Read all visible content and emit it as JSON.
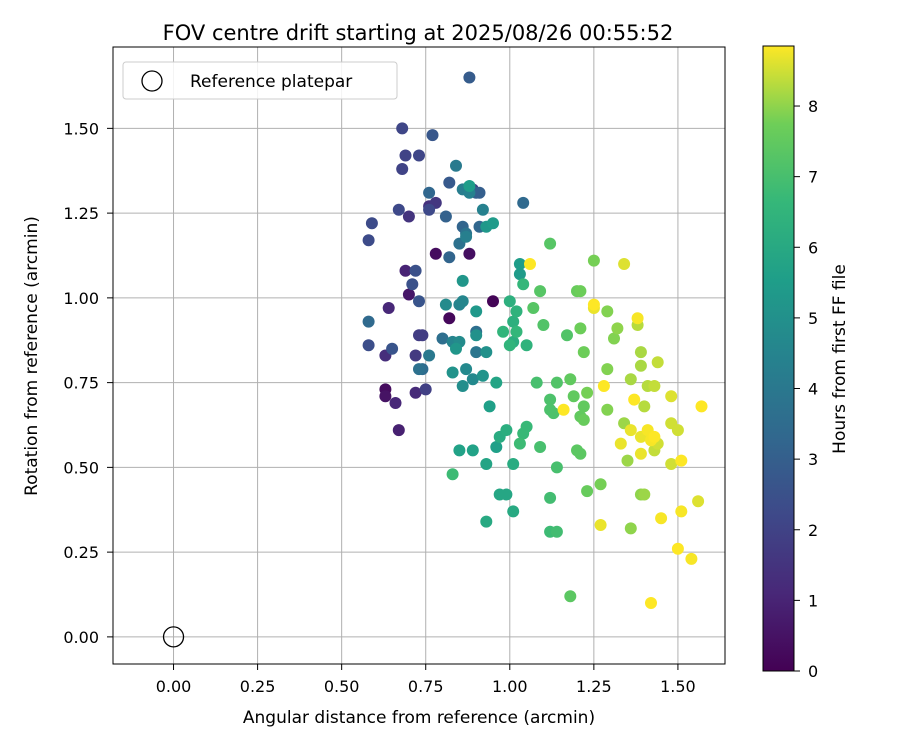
{
  "chart_data": {
    "type": "scatter",
    "title": "FOV centre drift starting at 2025/08/26 00:55:52",
    "xlabel": "Angular distance from reference (arcmin)",
    "ylabel": "Rotation from reference (arcmin)",
    "xlim": [
      -0.18,
      1.64
    ],
    "ylim": [
      -0.08,
      1.74
    ],
    "xticks": [
      "0.00",
      "0.25",
      "0.50",
      "0.75",
      "1.00",
      "1.25",
      "1.50"
    ],
    "xtick_values": [
      0,
      0.25,
      0.5,
      0.75,
      1.0,
      1.25,
      1.5
    ],
    "yticks": [
      "0.00",
      "0.25",
      "0.50",
      "0.75",
      "1.00",
      "1.25",
      "1.50"
    ],
    "ytick_values": [
      0,
      0.25,
      0.5,
      0.75,
      1.0,
      1.25,
      1.5
    ],
    "grid": true,
    "legend": {
      "position": "top-left",
      "entries": [
        "Reference platepar"
      ]
    },
    "reference_point": {
      "name": "Reference platepar",
      "x": 0.0,
      "y": 0.0
    },
    "colorbar": {
      "label": "Hours from first FF file",
      "range": [
        0,
        8.85
      ],
      "ticks": [
        "0",
        "1",
        "2",
        "3",
        "4",
        "5",
        "6",
        "7",
        "8"
      ],
      "tick_values": [
        0,
        1,
        2,
        3,
        4,
        5,
        6,
        7,
        8
      ],
      "colormap": "viridis"
    },
    "point_columns": [
      "x",
      "y",
      "hours"
    ],
    "points": [
      [
        0.78,
        1.13,
        0.3
      ],
      [
        0.82,
        0.94,
        0.2
      ],
      [
        0.95,
        0.99,
        0.1
      ],
      [
        0.88,
        1.13,
        0.4
      ],
      [
        0.63,
        0.73,
        0.3
      ],
      [
        0.63,
        0.71,
        0.5
      ],
      [
        0.7,
        1.01,
        0.6
      ],
      [
        0.67,
        0.61,
        0.9
      ],
      [
        0.69,
        1.08,
        1.0
      ],
      [
        0.64,
        0.97,
        1.1
      ],
      [
        0.66,
        0.69,
        1.1
      ],
      [
        0.72,
        0.72,
        1.2
      ],
      [
        0.63,
        0.83,
        1.3
      ],
      [
        0.76,
        1.27,
        1.4
      ],
      [
        0.7,
        1.24,
        1.5
      ],
      [
        0.78,
        1.28,
        1.6
      ],
      [
        0.89,
        1.32,
        1.7
      ],
      [
        0.72,
        0.83,
        1.7
      ],
      [
        0.73,
        0.89,
        1.8
      ],
      [
        0.74,
        0.89,
        1.8
      ],
      [
        0.75,
        0.73,
        1.9
      ],
      [
        0.68,
        1.38,
        2.0
      ],
      [
        0.69,
        1.42,
        2.0
      ],
      [
        0.73,
        1.42,
        2.1
      ],
      [
        0.68,
        1.5,
        2.1
      ],
      [
        0.76,
        1.26,
        2.2
      ],
      [
        0.67,
        1.26,
        2.2
      ],
      [
        0.58,
        1.17,
        2.3
      ],
      [
        0.59,
        1.22,
        2.3
      ],
      [
        0.58,
        0.86,
        2.4
      ],
      [
        0.71,
        1.04,
        2.5
      ],
      [
        0.72,
        1.08,
        2.5
      ],
      [
        0.73,
        0.99,
        2.6
      ],
      [
        0.65,
        0.85,
        2.6
      ],
      [
        0.77,
        1.48,
        2.7
      ],
      [
        0.82,
        1.34,
        2.8
      ],
      [
        0.88,
        1.65,
        2.9
      ],
      [
        0.9,
        1.31,
        3.0
      ],
      [
        0.91,
        1.31,
        3.0
      ],
      [
        0.81,
        1.24,
        3.1
      ],
      [
        0.82,
        1.12,
        3.2
      ],
      [
        0.86,
        1.21,
        3.2
      ],
      [
        0.91,
        1.21,
        3.3
      ],
      [
        0.76,
        1.31,
        3.3
      ],
      [
        0.58,
        0.93,
        3.4
      ],
      [
        1.04,
        1.28,
        3.4
      ],
      [
        0.74,
        0.79,
        3.5
      ],
      [
        0.8,
        0.88,
        3.6
      ],
      [
        0.9,
        0.9,
        3.6
      ],
      [
        0.73,
        0.79,
        3.7
      ],
      [
        0.85,
        1.16,
        3.7
      ],
      [
        0.87,
        1.19,
        3.8
      ],
      [
        0.9,
        0.84,
        3.9
      ],
      [
        0.76,
        0.83,
        4.0
      ],
      [
        0.84,
        1.39,
        4.1
      ],
      [
        0.86,
        1.32,
        4.2
      ],
      [
        0.87,
        1.18,
        4.3
      ],
      [
        0.88,
        1.31,
        4.4
      ],
      [
        0.92,
        1.26,
        4.4
      ],
      [
        0.83,
        0.87,
        4.5
      ],
      [
        0.85,
        0.98,
        4.5
      ],
      [
        0.86,
        0.99,
        4.6
      ],
      [
        0.87,
        0.79,
        4.7
      ],
      [
        0.89,
        0.76,
        4.7
      ],
      [
        0.81,
        0.98,
        4.8
      ],
      [
        0.85,
        0.87,
        4.8
      ],
      [
        0.86,
        0.74,
        4.9
      ],
      [
        0.93,
        0.84,
        5.0
      ],
      [
        0.9,
        0.89,
        5.0
      ],
      [
        0.92,
        0.77,
        5.1
      ],
      [
        0.83,
        0.78,
        5.1
      ],
      [
        0.84,
        0.85,
        5.2
      ],
      [
        0.86,
        1.05,
        5.2
      ],
      [
        0.9,
        0.96,
        5.3
      ],
      [
        0.93,
        1.21,
        5.3
      ],
      [
        0.95,
        1.22,
        5.4
      ],
      [
        1.03,
        1.07,
        5.4
      ],
      [
        1.03,
        1.1,
        5.5
      ],
      [
        0.88,
        1.33,
        5.5
      ],
      [
        0.94,
        0.68,
        5.6
      ],
      [
        0.96,
        0.56,
        5.6
      ],
      [
        0.89,
        0.55,
        5.7
      ],
      [
        0.85,
        0.55,
        5.7
      ],
      [
        0.93,
        0.51,
        5.8
      ],
      [
        0.96,
        0.75,
        5.8
      ],
      [
        0.97,
        0.42,
        5.9
      ],
      [
        0.99,
        0.42,
        5.9
      ],
      [
        0.93,
        0.34,
        6.0
      ],
      [
        1.01,
        0.37,
        6.0
      ],
      [
        1.01,
        0.51,
        6.1
      ],
      [
        0.97,
        0.59,
        6.1
      ],
      [
        0.99,
        0.61,
        6.2
      ],
      [
        1.01,
        0.87,
        6.2
      ],
      [
        1.01,
        0.93,
        6.3
      ],
      [
        1.0,
        0.99,
        6.3
      ],
      [
        1.02,
        0.96,
        6.4
      ],
      [
        1.05,
        0.86,
        6.4
      ],
      [
        0.98,
        0.9,
        6.5
      ],
      [
        1.0,
        0.86,
        6.5
      ],
      [
        1.02,
        0.9,
        6.6
      ],
      [
        1.04,
        1.04,
        6.6
      ],
      [
        1.04,
        0.6,
        6.7
      ],
      [
        1.05,
        0.62,
        6.7
      ],
      [
        0.83,
        0.48,
        6.8
      ],
      [
        1.03,
        0.57,
        6.8
      ],
      [
        1.12,
        0.31,
        6.8
      ],
      [
        1.14,
        0.31,
        6.9
      ],
      [
        1.12,
        0.41,
        6.9
      ],
      [
        1.14,
        0.5,
        7.0
      ],
      [
        1.09,
        0.56,
        7.0
      ],
      [
        1.08,
        0.75,
        7.0
      ],
      [
        1.12,
        0.7,
        7.1
      ],
      [
        1.13,
        0.66,
        7.1
      ],
      [
        1.12,
        0.67,
        7.1
      ],
      [
        1.14,
        0.75,
        7.2
      ],
      [
        1.17,
        0.89,
        7.2
      ],
      [
        1.1,
        0.92,
        7.2
      ],
      [
        1.07,
        0.97,
        7.3
      ],
      [
        1.09,
        1.02,
        7.3
      ],
      [
        1.12,
        1.16,
        7.3
      ],
      [
        1.18,
        0.12,
        7.4
      ],
      [
        1.2,
        0.55,
        7.4
      ],
      [
        1.21,
        0.54,
        7.4
      ],
      [
        1.18,
        0.76,
        7.5
      ],
      [
        1.19,
        0.71,
        7.5
      ],
      [
        1.21,
        0.65,
        7.5
      ],
      [
        1.22,
        0.68,
        7.5
      ],
      [
        1.22,
        0.64,
        7.6
      ],
      [
        1.23,
        0.43,
        7.6
      ],
      [
        1.2,
        1.02,
        7.6
      ],
      [
        1.21,
        1.02,
        7.7
      ],
      [
        1.21,
        0.91,
        7.7
      ],
      [
        1.22,
        0.84,
        7.7
      ],
      [
        1.25,
        1.11,
        7.8
      ],
      [
        1.27,
        0.45,
        7.8
      ],
      [
        1.23,
        0.72,
        7.8
      ],
      [
        1.29,
        0.79,
        7.9
      ],
      [
        1.29,
        0.67,
        7.9
      ],
      [
        1.29,
        0.96,
        7.9
      ],
      [
        1.31,
        0.88,
        7.9
      ],
      [
        1.32,
        0.91,
        8.0
      ],
      [
        1.36,
        0.32,
        8.0
      ],
      [
        1.39,
        0.42,
        8.0
      ],
      [
        1.4,
        0.42,
        8.1
      ],
      [
        1.34,
        0.63,
        8.1
      ],
      [
        1.35,
        0.52,
        8.1
      ],
      [
        1.36,
        0.76,
        8.2
      ],
      [
        1.39,
        0.84,
        8.2
      ],
      [
        1.39,
        0.8,
        8.2
      ],
      [
        1.38,
        0.92,
        8.3
      ],
      [
        1.41,
        0.74,
        8.3
      ],
      [
        1.4,
        0.68,
        8.3
      ],
      [
        1.43,
        0.74,
        8.4
      ],
      [
        1.44,
        0.81,
        8.4
      ],
      [
        1.43,
        0.55,
        8.4
      ],
      [
        1.44,
        0.57,
        8.5
      ],
      [
        1.48,
        0.63,
        8.5
      ],
      [
        1.48,
        0.51,
        8.5
      ],
      [
        1.5,
        0.61,
        8.5
      ],
      [
        1.48,
        0.71,
        8.6
      ],
      [
        1.56,
        0.4,
        8.6
      ],
      [
        1.34,
        1.1,
        8.6
      ],
      [
        1.25,
        0.97,
        8.7
      ],
      [
        1.27,
        0.33,
        8.7
      ],
      [
        1.33,
        0.57,
        8.7
      ],
      [
        1.36,
        0.61,
        8.7
      ],
      [
        1.39,
        0.59,
        8.7
      ],
      [
        1.39,
        0.54,
        8.7
      ],
      [
        1.41,
        0.61,
        8.8
      ],
      [
        1.42,
        0.58,
        8.8
      ],
      [
        1.38,
        0.94,
        8.8
      ],
      [
        1.45,
        0.35,
        8.8
      ],
      [
        1.51,
        0.37,
        8.8
      ],
      [
        1.54,
        0.23,
        8.8
      ],
      [
        1.5,
        0.26,
        8.9
      ],
      [
        1.42,
        0.1,
        8.9
      ],
      [
        1.51,
        0.52,
        8.9
      ],
      [
        1.57,
        0.68,
        8.9
      ],
      [
        1.28,
        0.74,
        8.9
      ],
      [
        1.25,
        0.98,
        8.9
      ],
      [
        1.06,
        1.1,
        8.9
      ],
      [
        1.37,
        0.7,
        8.9
      ],
      [
        1.16,
        0.67,
        8.9
      ],
      [
        1.43,
        0.59,
        8.9
      ]
    ]
  }
}
